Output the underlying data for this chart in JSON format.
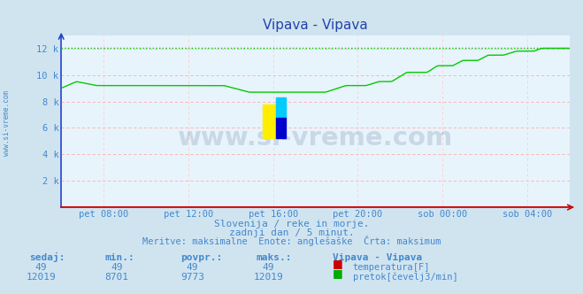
{
  "title": "Vipava - Vipava",
  "bg_color": "#d0e4f0",
  "plot_bg_color": "#e8f4fc",
  "grid_color_h": "#ffaaaa",
  "grid_color_v": "#ffcccc",
  "title_color": "#2244aa",
  "axis_label_color": "#4488cc",
  "text_color": "#4488cc",
  "xlabel_ticks": [
    "pet 08:00",
    "pet 12:00",
    "pet 16:00",
    "pet 20:00",
    "sob 00:00",
    "sob 04:00"
  ],
  "xlabel_fractions": [
    0.083,
    0.25,
    0.417,
    0.583,
    0.75,
    0.917
  ],
  "ylim": [
    0,
    13000
  ],
  "ytick_vals": [
    2000,
    4000,
    6000,
    8000,
    10000,
    12000
  ],
  "ytick_labels": [
    "2 k",
    "4 k",
    "6 k",
    "8 k",
    "10 k",
    "12 k"
  ],
  "watermark": "www.si-vreme.com",
  "watermark_color": "#1a3a6a",
  "subtitle1": "Slovenija / reke in morje.",
  "subtitle2": "zadnji dan / 5 minut.",
  "subtitle3": "Meritve: maksimalne  Enote: anglešaške  Črta: maksimum",
  "legend_title": "Vipava - Vipava",
  "legend_items": [
    {
      "label": "temperatura[F]",
      "color": "#cc0000"
    },
    {
      "label": "pretok[čevelj3/min]",
      "color": "#00aa00"
    }
  ],
  "stats_headers": [
    "sedaj:",
    "min.:",
    "povpr.:",
    "maks.:"
  ],
  "stats_row1": [
    "49",
    "49",
    "49",
    "49"
  ],
  "stats_row2": [
    "12019",
    "8701",
    "9773",
    "12019"
  ],
  "temp_value": 49,
  "temp_color": "#cc0000",
  "flow_color": "#00cc00",
  "flow_dot_color": "#00cc00",
  "spine_color_v": "#2244cc",
  "spine_color_h": "#cc0000",
  "total_points": 288,
  "max_flow": 12019,
  "logo_yellow": "#ffee00",
  "logo_cyan": "#00ccff",
  "logo_blue": "#0000cc"
}
